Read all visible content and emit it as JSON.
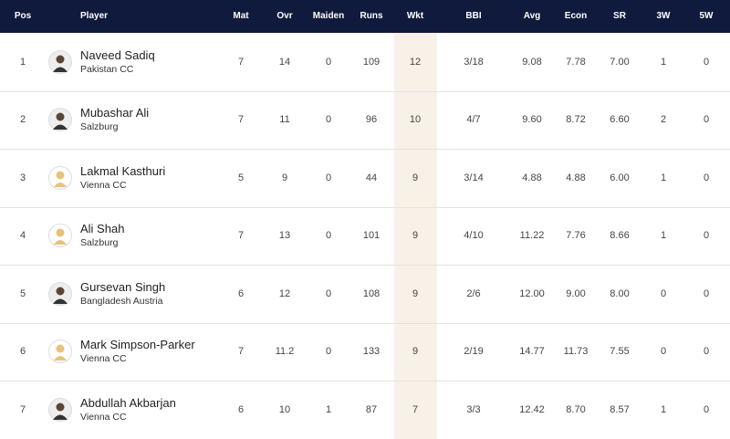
{
  "table": {
    "columns": [
      "Pos",
      "Player",
      "Mat",
      "Ovr",
      "Maiden",
      "Runs",
      "Wkt",
      "BBI",
      "Avg",
      "Econ",
      "SR",
      "3W",
      "5W"
    ],
    "rows": [
      {
        "pos": "1",
        "player": "Naveed Sadiq",
        "team": "Pakistan CC",
        "mat": "7",
        "ovr": "14",
        "maiden": "0",
        "runs": "109",
        "wkt": "12",
        "bbi": "3/18",
        "avg": "9.08",
        "econ": "7.78",
        "sr": "7.00",
        "w3": "1",
        "w5": "0"
      },
      {
        "pos": "2",
        "player": "Mubashar Ali",
        "team": "Salzburg",
        "mat": "7",
        "ovr": "11",
        "maiden": "0",
        "runs": "96",
        "wkt": "10",
        "bbi": "4/7",
        "avg": "9.60",
        "econ": "8.72",
        "sr": "6.60",
        "w3": "2",
        "w5": "0"
      },
      {
        "pos": "3",
        "player": "Lakmal Kasthuri",
        "team": "Vienna CC",
        "mat": "5",
        "ovr": "9",
        "maiden": "0",
        "runs": "44",
        "wkt": "9",
        "bbi": "3/14",
        "avg": "4.88",
        "econ": "4.88",
        "sr": "6.00",
        "w3": "1",
        "w5": "0"
      },
      {
        "pos": "4",
        "player": "Ali Shah",
        "team": "Salzburg",
        "mat": "7",
        "ovr": "13",
        "maiden": "0",
        "runs": "101",
        "wkt": "9",
        "bbi": "4/10",
        "avg": "11.22",
        "econ": "7.76",
        "sr": "8.66",
        "w3": "1",
        "w5": "0"
      },
      {
        "pos": "5",
        "player": "Gursevan Singh",
        "team": "Bangladesh Austria",
        "mat": "6",
        "ovr": "12",
        "maiden": "0",
        "runs": "108",
        "wkt": "9",
        "bbi": "2/6",
        "avg": "12.00",
        "econ": "9.00",
        "sr": "8.00",
        "w3": "0",
        "w5": "0"
      },
      {
        "pos": "6",
        "player": "Mark Simpson-Parker",
        "team": "Vienna CC",
        "mat": "7",
        "ovr": "11.2",
        "maiden": "0",
        "runs": "133",
        "wkt": "9",
        "bbi": "2/19",
        "avg": "14.77",
        "econ": "11.73",
        "sr": "7.55",
        "w3": "0",
        "w5": "0"
      },
      {
        "pos": "7",
        "player": "Abdullah Akbarjan",
        "team": "Vienna CC",
        "mat": "6",
        "ovr": "10",
        "maiden": "1",
        "runs": "87",
        "wkt": "7",
        "bbi": "3/3",
        "avg": "12.42",
        "econ": "8.70",
        "sr": "8.57",
        "w3": "1",
        "w5": "0"
      }
    ]
  }
}
